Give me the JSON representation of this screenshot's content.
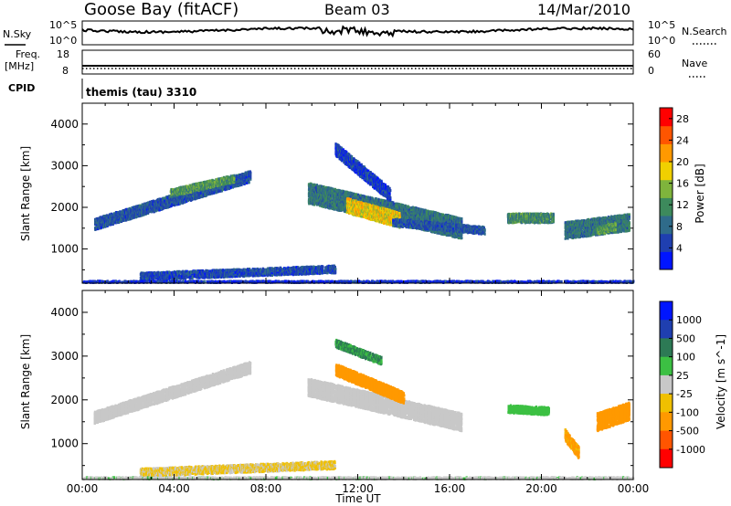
{
  "header": {
    "station": "Goose Bay (fitACF)",
    "beam": "Beam 03",
    "date": "14/Mar/2010"
  },
  "strip": {
    "nsky_label": "N.Sky",
    "nsky_top": "10^5",
    "nsky_bottom": "10^0",
    "nsearch_label": "N.Search",
    "nsearch_top": "10^5",
    "nsearch_bottom": "10^0",
    "freq_label_1": "Freq.",
    "freq_label_2": "[MHz]",
    "freq_top": "18",
    "freq_bottom": "8",
    "nave_label": "Nave",
    "nave_top": "60",
    "nave_bottom": "0",
    "cpid_label": "CPID",
    "cpid_value": "themis (tau) 3310"
  },
  "colors": {
    "power_scale": [
      "#0015ff",
      "#1f3fb0",
      "#2f6b8a",
      "#3d8a5c",
      "#7fb43c",
      "#f0d000",
      "#ff9900",
      "#ff5500",
      "#ff0000"
    ],
    "velocity_scale": [
      "#0015ff",
      "#1f3fb0",
      "#2d7a55",
      "#3cc043",
      "#c8c8c8",
      "#f0c000",
      "#ff9900",
      "#ff5500",
      "#ff0000"
    ],
    "white_range": "#ffffff"
  },
  "chart_data": [
    {
      "type": "heatmap",
      "title": "",
      "ylabel": "Slant Range [km]",
      "xlim": [
        0,
        24
      ],
      "ylim": [
        180,
        4500
      ],
      "yticks": [
        1000,
        2000,
        3000,
        4000
      ],
      "colorbar": {
        "label": "Power [dB]",
        "ticks": [
          "4",
          "8",
          "12",
          "16",
          "20",
          "24",
          "28"
        ],
        "range": [
          0,
          30
        ]
      },
      "regions": [
        {
          "desc": "arc rising",
          "t0": 0.5,
          "t1": 7.3,
          "r0": 1600,
          "r1": 2750,
          "thick": 260,
          "value": 7
        },
        {
          "desc": "arc peak",
          "t0": 3.8,
          "t1": 6.6,
          "r0": 2350,
          "r1": 2700,
          "thick": 200,
          "value": 13
        },
        {
          "desc": "mid patch",
          "t0": 9.8,
          "t1": 16.5,
          "r0": 2350,
          "r1": 1500,
          "thick": 500,
          "value": 10
        },
        {
          "desc": "mid core",
          "t0": 11.5,
          "t1": 13.8,
          "r0": 2050,
          "r1": 1700,
          "thick": 350,
          "value": 20
        },
        {
          "desc": "mid tail",
          "t0": 13.5,
          "t1": 17.5,
          "r0": 1650,
          "r1": 1450,
          "thick": 200,
          "value": 7
        },
        {
          "desc": "upper streak",
          "t0": 11.0,
          "t1": 13.4,
          "r0": 3400,
          "r1": 2300,
          "thick": 300,
          "value": 5
        },
        {
          "desc": "evening patch",
          "t0": 18.5,
          "t1": 20.5,
          "r0": 1750,
          "r1": 1750,
          "thick": 220,
          "value": 12
        },
        {
          "desc": "late patch",
          "t0": 21.0,
          "t1": 23.8,
          "r0": 1450,
          "r1": 1650,
          "thick": 400,
          "value": 10
        },
        {
          "desc": "late core",
          "t0": 22.4,
          "t1": 23.2,
          "r0": 1450,
          "r1": 1550,
          "thick": 200,
          "value": 14
        },
        {
          "desc": "ground scatter",
          "t0": 2.5,
          "t1": 11.0,
          "r0": 350,
          "r1": 520,
          "thick": 180,
          "value": 6
        },
        {
          "desc": "near range",
          "t0": 0.0,
          "t1": 24.0,
          "r0": 220,
          "r1": 220,
          "thick": 60,
          "value": 4
        }
      ]
    },
    {
      "type": "heatmap",
      "title": "",
      "xlabel": "Time UT",
      "ylabel": "Slant Range [km]",
      "xlim": [
        0,
        24
      ],
      "ylim": [
        180,
        4500
      ],
      "yticks": [
        1000,
        2000,
        3000,
        4000
      ],
      "xticks": [
        "00:00",
        "04:00",
        "08:00",
        "12:00",
        "16:00",
        "20:00",
        "00:00"
      ],
      "colorbar": {
        "label": "Velocity [m s^-1]",
        "ticks": [
          "1000",
          "500",
          "100",
          "25",
          "-25",
          "-100",
          "-500",
          "-1000"
        ]
      },
      "regions": [
        {
          "desc": "arc rising",
          "t0": 0.5,
          "t1": 7.3,
          "r0": 1600,
          "r1": 2750,
          "thick": 260,
          "value": 0
        },
        {
          "desc": "mid patch",
          "t0": 9.8,
          "t1": 16.5,
          "r0": 2300,
          "r1": 1500,
          "thick": 420,
          "value": 0
        },
        {
          "desc": "mid orange",
          "t0": 11.0,
          "t1": 14.0,
          "r0": 2700,
          "r1": 2050,
          "thick": 280,
          "value": -300
        },
        {
          "desc": "upper green",
          "t0": 11.0,
          "t1": 13.0,
          "r0": 3300,
          "r1": 2900,
          "thick": 200,
          "value": 120
        },
        {
          "desc": "evening patch",
          "t0": 18.5,
          "t1": 20.3,
          "r0": 1800,
          "r1": 1750,
          "thick": 180,
          "value": 60
        },
        {
          "desc": "late orange",
          "t0": 21.0,
          "t1": 21.6,
          "r0": 1200,
          "r1": 800,
          "thick": 250,
          "value": -150
        },
        {
          "desc": "late patch",
          "t0": 22.4,
          "t1": 23.8,
          "r0": 1500,
          "r1": 1750,
          "thick": 400,
          "value": -200
        },
        {
          "desc": "ground scatter",
          "t0": 2.5,
          "t1": 11.0,
          "r0": 350,
          "r1": 520,
          "thick": 180,
          "value": -30
        },
        {
          "desc": "near range",
          "t0": 0.0,
          "t1": 24.0,
          "r0": 220,
          "r1": 220,
          "thick": 60,
          "value": 10
        }
      ]
    }
  ]
}
